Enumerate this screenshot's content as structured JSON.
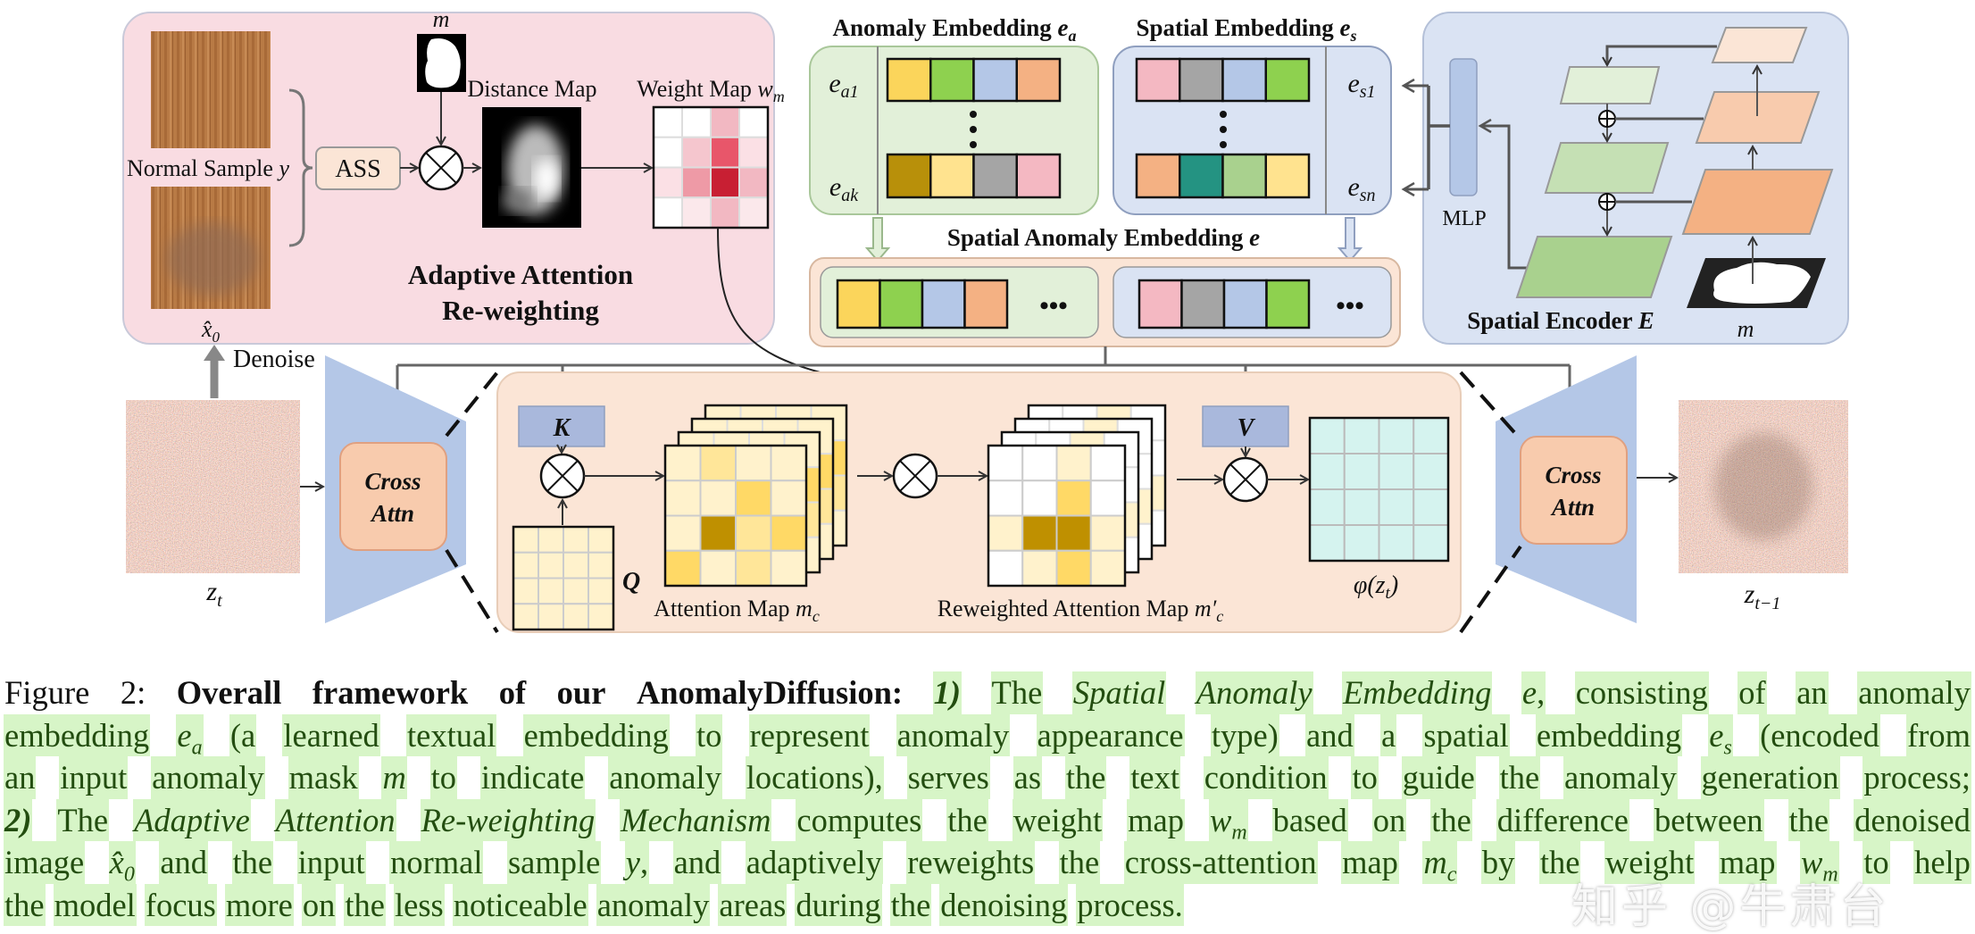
{
  "figure": {
    "aar": {
      "mask_label": "m",
      "distance_map": "Distance Map",
      "weight_map": "Weight Map ",
      "weight_map_sym": "w",
      "weight_map_sub": "m",
      "normal_sample": "Normal Sample ",
      "normal_sample_sym": "y",
      "ass": "ASS",
      "x0_sym": "x̂",
      "x0_sub": "0",
      "title_line1": "Adaptive Attention",
      "title_line2": "Re-weighting",
      "denoise": "Denoise",
      "weight_map_cells": [
        [
          "#ffffff",
          "#ffffff",
          "#f2b8c2",
          "#ffffff"
        ],
        [
          "#ffffff",
          "#f5c6ce",
          "#e8566a",
          "#fbe0e5"
        ],
        [
          "#fbe0e5",
          "#ee9aa6",
          "#c81f33",
          "#f2b8c2"
        ],
        [
          "#ffffff",
          "#fbe8eb",
          "#f2b8c2",
          "#fbe8eb"
        ]
      ]
    },
    "anomaly_embedding": {
      "title": "Anomaly Embedding ",
      "title_sym": "e",
      "title_sub": "a",
      "row1_label": "e",
      "row1_sub": "a1",
      "rowk_label": "e",
      "rowk_sub": "ak",
      "row1_colors": [
        "#fbd55b",
        "#8ed14f",
        "#b4c7e7",
        "#f4b183"
      ],
      "rowk_colors": [
        "#b8900a",
        "#ffe38f",
        "#a5a5a5",
        "#f4b8c2"
      ]
    },
    "spatial_embedding": {
      "title": "Spatial Embedding ",
      "title_sym": "e",
      "title_sub": "s",
      "row1_label": "e",
      "row1_sub": "s1",
      "rown_label": "e",
      "rown_sub": "sn",
      "row1_colors": [
        "#f4b8c2",
        "#a5a5a5",
        "#b4c7e7",
        "#8ed14f"
      ],
      "rown_colors": [
        "#f4b183",
        "#249382",
        "#a9d18e",
        "#ffe38f"
      ]
    },
    "spatial_anomaly_embedding": {
      "title": "Spatial Anomaly Embedding ",
      "title_sym": "e",
      "anomaly_colors": [
        "#fbd55b",
        "#8ed14f",
        "#b4c7e7",
        "#f4b183"
      ],
      "spatial_colors": [
        "#f4b8c2",
        "#a5a5a5",
        "#b4c7e7",
        "#8ed14f"
      ],
      "ellipsis": "•••"
    },
    "encoder": {
      "mlp": "MLP",
      "title": "Spatial Encoder ",
      "title_sym": "E",
      "mask_label": "m"
    },
    "unet": {
      "zt": "z",
      "zt_sub": "t",
      "zt1": "z",
      "zt1_sub": "t−1",
      "cross_attn_left_1": "Cross",
      "cross_attn_left_2": "Attn",
      "cross_attn_right_1": "Cross",
      "cross_attn_right_2": "Attn",
      "k": "K",
      "q": "Q",
      "v": "V",
      "attention_map": "Attention Map ",
      "attention_map_sym": "m",
      "attention_map_sub": "c",
      "reweighted_map": "Reweighted  Attention Map ",
      "reweighted_map_sym": "m′",
      "reweighted_map_sub": "c",
      "phi": "φ(z",
      "phi_sub": "t",
      "phi_end": ")",
      "attention_cells": [
        [
          "#fff2cc",
          "#ffe699",
          "#fff2cc",
          "#fff2cc"
        ],
        [
          "#fff2cc",
          "#fff2cc",
          "#ffd966",
          "#fff2cc"
        ],
        [
          "#fff2cc",
          "#bf9000",
          "#ffe699",
          "#ffd966"
        ],
        [
          "#ffd966",
          "#fff2cc",
          "#ffe699",
          "#fff2cc"
        ]
      ],
      "reweighted_cells": [
        [
          "#ffffff",
          "#ffffff",
          "#fff2cc",
          "#ffffff"
        ],
        [
          "#ffffff",
          "#ffffff",
          "#ffd966",
          "#ffffff"
        ],
        [
          "#fff2cc",
          "#bf9000",
          "#bf9000",
          "#fff2cc"
        ],
        [
          "#ffffff",
          "#fff2cc",
          "#ffd966",
          "#fff2cc"
        ]
      ]
    }
  },
  "caption": {
    "lines": [
      [
        {
          "t": "Figure 2:",
          "k": "plain"
        },
        {
          "t": "Overall framework of our AnomalyDiffusion:",
          "k": "plain b"
        },
        {
          "t": "1)",
          "k": "hl b i"
        },
        {
          "t": "The",
          "k": "hl"
        },
        {
          "t": "Spatial Anomaly Embedding",
          "k": "hl i"
        },
        {
          "t": "e",
          "k": "hl m",
          "after": ", consisting of an anomaly"
        }
      ],
      [
        {
          "t": "embedding",
          "k": "hl"
        },
        {
          "t": "e",
          "sub": "a",
          "k": "hl m"
        },
        {
          "t": "(a learned textual embedding to represent anomaly appearance type) and a spatial embedding",
          "k": "hl"
        },
        {
          "t": "e",
          "sub": "s",
          "k": "hl m"
        },
        {
          "t": "(encoded from",
          "k": "hl"
        }
      ],
      [
        {
          "t": "an input anomaly mask",
          "k": "hl"
        },
        {
          "t": "m",
          "k": "hl m"
        },
        {
          "t": "to indicate anomaly locations), serves as the text condition to guide the anomaly generation process;",
          "k": "hl"
        }
      ],
      [
        {
          "t": "2)",
          "k": "hl b i"
        },
        {
          "t": "The",
          "k": "hl"
        },
        {
          "t": "Adaptive Attention Re-weighting Mechanism",
          "k": "hl i"
        },
        {
          "t": "computes the weight map",
          "k": "hl"
        },
        {
          "t": "w",
          "sub": "m",
          "k": "hl m"
        },
        {
          "t": "based on the difference between the denoised",
          "k": "hl"
        }
      ],
      [
        {
          "t": "image",
          "k": "hl"
        },
        {
          "t": "x̂",
          "sub": "0",
          "k": "hl m"
        },
        {
          "t": "and the input normal sample",
          "k": "hl"
        },
        {
          "t": "y",
          "k": "hl m",
          "after": ", and adaptively reweights the cross-attention map"
        },
        {
          "t": "m",
          "sub": "c",
          "k": "hl m"
        },
        {
          "t": "by the weight map",
          "k": "hl"
        },
        {
          "t": "w",
          "sub": "m",
          "k": "hl m"
        },
        {
          "t": "to help",
          "k": "hl"
        }
      ],
      [
        {
          "t": "the model focus more on the less noticeable anomaly areas during the denoising process.",
          "k": "hl"
        }
      ]
    ]
  },
  "watermark": "知乎 @牛肃台",
  "colors": {
    "aar_panel": "#f9dce2",
    "embedding_green": "#e2f0d9",
    "embedding_blue": "#dae3f3",
    "peach": "#fbe5d6",
    "unet_blue": "#b4c7e7",
    "cross_attn": "#f8cbad",
    "caption_highlight": "#d7f5c7",
    "caption_text": "#234d10"
  }
}
